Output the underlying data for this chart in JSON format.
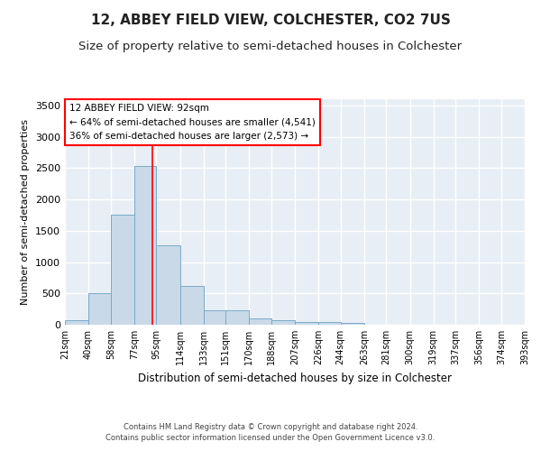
{
  "title": "12, ABBEY FIELD VIEW, COLCHESTER, CO2 7US",
  "subtitle": "Size of property relative to semi-detached houses in Colchester",
  "xlabel": "Distribution of semi-detached houses by size in Colchester",
  "ylabel": "Number of semi-detached properties",
  "footnote1": "Contains HM Land Registry data © Crown copyright and database right 2024.",
  "footnote2": "Contains public sector information licensed under the Open Government Licence v3.0.",
  "annotation_title": "12 ABBEY FIELD VIEW: 92sqm",
  "annotation_line1": "← 64% of semi-detached houses are smaller (4,541)",
  "annotation_line2": "36% of semi-detached houses are larger (2,573) →",
  "property_size_sqm": 92,
  "bar_edges": [
    21,
    40,
    58,
    77,
    95,
    114,
    133,
    151,
    170,
    188,
    207,
    226,
    244,
    263,
    281,
    300,
    319,
    337,
    356,
    374,
    393
  ],
  "bar_heights": [
    70,
    510,
    1760,
    2540,
    1265,
    620,
    225,
    225,
    100,
    65,
    50,
    40,
    35,
    0,
    0,
    0,
    0,
    0,
    0,
    0
  ],
  "bar_color": "#c9d9e8",
  "bar_edge_color": "#7aaac8",
  "red_line_x": 92,
  "ylim": [
    0,
    3600
  ],
  "yticks": [
    0,
    500,
    1000,
    1500,
    2000,
    2500,
    3000,
    3500
  ],
  "background_color": "#e8eef5",
  "grid_color": "#ffffff",
  "title_fontsize": 11,
  "subtitle_fontsize": 9.5
}
